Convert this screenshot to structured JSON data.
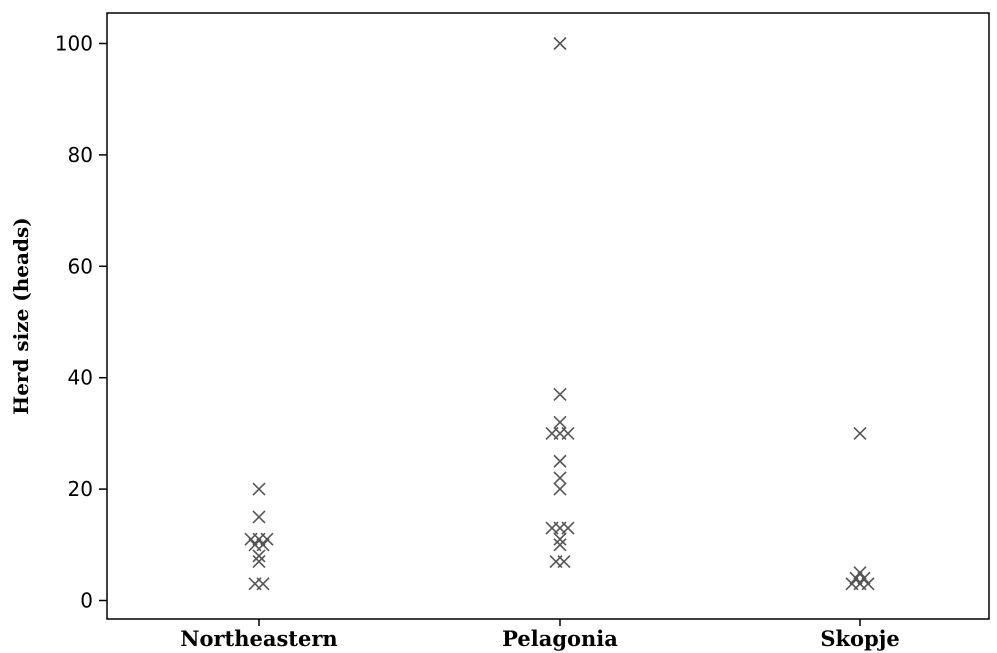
{
  "chart_data": {
    "type": "scatter",
    "title": "",
    "xlabel": "",
    "ylabel": "Herd size (heads)",
    "categories": [
      "Northeastern",
      "Pelagonia",
      "Skopje"
    ],
    "ylim": [
      0,
      100
    ],
    "yticks": [
      0,
      20,
      40,
      60,
      80,
      100
    ],
    "grid": false,
    "legend": "none",
    "marker": "x",
    "marker_color": "#555555",
    "series": [
      {
        "category": "Northeastern",
        "values": [
          20,
          15,
          11,
          11,
          11,
          10,
          10,
          8,
          7,
          3,
          3
        ]
      },
      {
        "category": "Pelagonia",
        "values": [
          100,
          37,
          32,
          30,
          30,
          30,
          25,
          22,
          20,
          13,
          13,
          13,
          11,
          10,
          7,
          7
        ]
      },
      {
        "category": "Skopje",
        "values": [
          30,
          5,
          4,
          4,
          3,
          3,
          3
        ]
      }
    ]
  }
}
